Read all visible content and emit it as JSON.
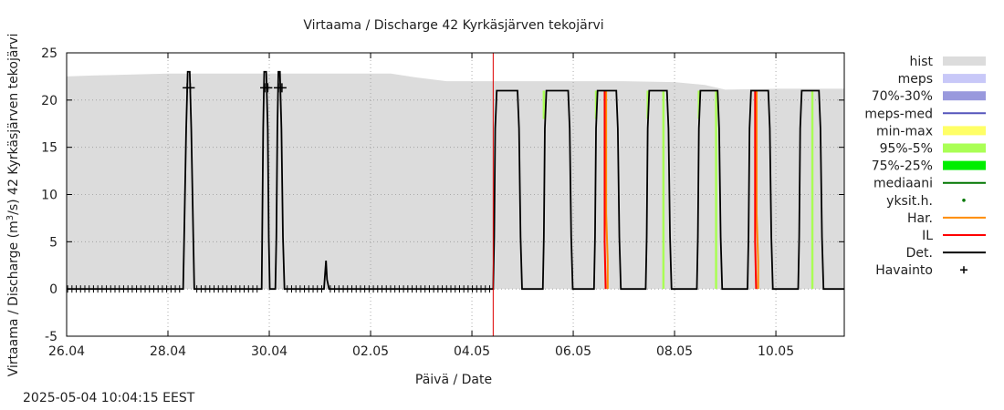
{
  "chart_data": {
    "type": "line",
    "title": "Virtaama / Discharge  42 Kyrkäsjärven tekojärvi",
    "xlabel": "Päivä / Date",
    "ylabel_prefix": "Virtaama / Discharge (m",
    "ylabel_sup": "3",
    "ylabel_suffix": "/s)  42 Kyrkäsjärven tekojärvi",
    "x_unit": "days since 26.04 00:00",
    "xlim": [
      0,
      15.35
    ],
    "ylim": [
      -5,
      25
    ],
    "grid": true,
    "x_ticks": [
      {
        "value": 0,
        "label": "26.04"
      },
      {
        "value": 2,
        "label": "28.04"
      },
      {
        "value": 4,
        "label": "30.04"
      },
      {
        "value": 6,
        "label": "02.05"
      },
      {
        "value": 8,
        "label": "04.05"
      },
      {
        "value": 10,
        "label": "06.05"
      },
      {
        "value": 12,
        "label": "08.05"
      },
      {
        "value": 14,
        "label": "10.05"
      }
    ],
    "y_ticks": [
      {
        "value": -5,
        "label": "-5"
      },
      {
        "value": 0,
        "label": "0"
      },
      {
        "value": 5,
        "label": "5"
      },
      {
        "value": 10,
        "label": "10"
      },
      {
        "value": 15,
        "label": "15"
      },
      {
        "value": 20,
        "label": "20"
      },
      {
        "value": 25,
        "label": "25"
      }
    ],
    "current_time": 8.42,
    "hist_band": {
      "x": [
        0,
        0.5,
        2.0,
        4.0,
        5.0,
        6.0,
        6.4,
        6.9,
        7.5,
        8.0,
        9.0,
        10.0,
        11.0,
        12.0,
        12.6,
        13.0,
        14.0,
        15.35
      ],
      "upper": [
        22.5,
        22.6,
        22.8,
        22.8,
        22.8,
        22.8,
        22.8,
        22.4,
        22.0,
        22.0,
        22.0,
        22.0,
        22.0,
        21.9,
        21.6,
        21.1,
        21.2,
        21.2
      ],
      "lower": [
        0,
        0,
        0,
        0,
        0,
        0,
        0,
        0,
        0,
        0,
        0,
        0,
        0,
        0,
        0,
        0,
        0,
        0
      ]
    },
    "series": [
      {
        "name": "Det.",
        "color": "#000000",
        "x": [
          0,
          2.3,
          2.32,
          2.36,
          2.39,
          2.43,
          2.46,
          2.5,
          2.52,
          3.85,
          3.86,
          3.88,
          3.9,
          3.94,
          3.97,
          3.99,
          4.01,
          4.12,
          4.14,
          4.16,
          4.18,
          4.21,
          4.24,
          4.27,
          4.3,
          5.0,
          5.08,
          5.12,
          5.14,
          5.18,
          5.2,
          8.42,
          8.44,
          8.46,
          8.49,
          8.9,
          8.93,
          8.96,
          8.99,
          9.4,
          9.42,
          9.44,
          9.47,
          9.9,
          9.93,
          9.96,
          9.99,
          10.41,
          10.43,
          10.45,
          10.48,
          10.85,
          10.88,
          10.91,
          10.94,
          11.43,
          11.45,
          11.47,
          11.5,
          11.85,
          11.88,
          11.91,
          11.94,
          12.44,
          12.46,
          12.48,
          12.51,
          12.85,
          12.88,
          12.91,
          12.94,
          13.44,
          13.46,
          13.48,
          13.51,
          13.85,
          13.88,
          13.91,
          13.94,
          14.44,
          14.46,
          14.48,
          14.51,
          14.85,
          14.88,
          14.91,
          14.94,
          15.35
        ],
        "y": [
          0,
          0,
          5.5,
          17,
          23,
          23,
          17,
          5.5,
          0,
          0,
          5.5,
          17,
          23,
          23,
          17,
          5.5,
          0,
          0,
          5.5,
          17,
          23,
          23,
          17,
          5.5,
          0,
          0,
          0,
          3,
          1,
          0,
          0,
          0,
          5.5,
          17,
          21,
          21,
          17,
          5.5,
          0,
          0,
          5.5,
          17,
          21,
          21,
          17,
          5.5,
          0,
          0,
          5.5,
          17,
          21,
          21,
          17,
          5.5,
          0,
          0,
          5.5,
          17,
          21,
          21,
          17,
          5.5,
          0,
          0,
          5.5,
          17,
          21,
          21,
          17,
          5.5,
          0,
          0,
          5.5,
          17,
          21,
          21,
          17,
          5.5,
          0,
          0,
          5.5,
          17,
          21,
          21,
          17,
          5.5,
          0,
          0
        ]
      },
      {
        "name": "Har.",
        "color": "#ff8c00",
        "segments": [
          {
            "x": [
              10.65,
              10.65,
              10.68,
              10.68
            ],
            "y": [
              21,
              8,
              3,
              0
            ]
          },
          {
            "x": [
              13.62,
              13.62,
              13.65,
              13.65
            ],
            "y": [
              21,
              8,
              3,
              0
            ]
          }
        ]
      },
      {
        "name": "IL",
        "color": "#ff0000",
        "segments": [
          {
            "x": [
              10.62,
              10.62,
              10.64
            ],
            "y": [
              21,
              5,
              0
            ]
          },
          {
            "x": [
              13.59,
              13.59,
              13.61
            ],
            "y": [
              21,
              5,
              0
            ]
          }
        ]
      },
      {
        "name": "95%-5%",
        "color": "#aaff55",
        "segments": [
          {
            "x": [
              9.42,
              9.42
            ],
            "y": [
              21,
              18
            ]
          },
          {
            "x": [
              10.45,
              10.45
            ],
            "y": [
              21,
              18
            ]
          },
          {
            "x": [
              11.47,
              11.47
            ],
            "y": [
              21,
              18
            ]
          },
          {
            "x": [
              11.78,
              11.78
            ],
            "y": [
              21,
              0
            ]
          },
          {
            "x": [
              12.48,
              12.48
            ],
            "y": [
              21,
              18
            ]
          },
          {
            "x": [
              12.82,
              12.82
            ],
            "y": [
              21,
              0
            ]
          },
          {
            "x": [
              14.72,
              14.72
            ],
            "y": [
              21,
              0
            ]
          }
        ]
      },
      {
        "name": "Havainto",
        "color": "#000000",
        "marker": "plus",
        "x": [
          2.38,
          2.44,
          3.91,
          3.97,
          4.18,
          4.25
        ]
      }
    ],
    "legend": [
      {
        "label": "hist",
        "type": "band",
        "color": "#dcdcdc"
      },
      {
        "label": "meps",
        "type": "band",
        "color": "#c8c8f8"
      },
      {
        "label": "70%-30%",
        "type": "band",
        "color": "#9999dd"
      },
      {
        "label": "meps-med",
        "type": "line",
        "color": "#5555bb"
      },
      {
        "label": "min-max",
        "type": "band",
        "color": "#ffff66"
      },
      {
        "label": "95%-5%",
        "type": "band",
        "color": "#aaff55"
      },
      {
        "label": "75%-25%",
        "type": "band",
        "color": "#00ee00"
      },
      {
        "label": "mediaani",
        "type": "line",
        "color": "#007700"
      },
      {
        "label": "yksit.h.",
        "type": "dot",
        "color": "#007700"
      },
      {
        "label": "Har.",
        "type": "line",
        "color": "#ff8c00"
      },
      {
        "label": "IL",
        "type": "line",
        "color": "#ff0000"
      },
      {
        "label": "Det.",
        "type": "line",
        "color": "#000000"
      },
      {
        "label": "Havainto",
        "type": "plus",
        "color": "#000000"
      }
    ]
  },
  "timestamp": "2025-05-04 10:04:15 EEST"
}
